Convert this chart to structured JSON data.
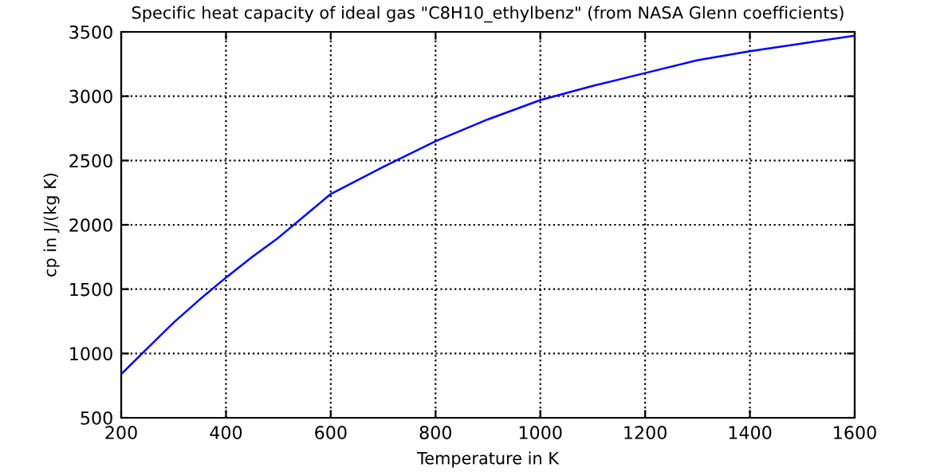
{
  "chart_data": {
    "type": "line",
    "title": "Specific heat capacity of ideal gas \"C8H10_ethylbenz\" (from NASA Glenn coefficients)",
    "xlabel": "Temperature in K",
    "ylabel": "cp in J/(kg K)",
    "x": [
      200,
      250,
      300,
      350,
      400,
      450,
      500,
      550,
      600,
      700,
      800,
      900,
      1000,
      1100,
      1200,
      1300,
      1400,
      1500,
      1600
    ],
    "series": [
      {
        "color": "#0000ff",
        "values": [
          840,
          1040,
          1240,
          1420,
          1590,
          1750,
          1900,
          2070,
          2240,
          2450,
          2650,
          2820,
          2970,
          3080,
          3180,
          3280,
          3350,
          3410,
          3470
        ]
      }
    ],
    "xlim": [
      200,
      1600
    ],
    "ylim": [
      500,
      3500
    ],
    "xticks": [
      200,
      400,
      600,
      800,
      1000,
      1200,
      1400,
      1600
    ],
    "yticks": [
      500,
      1000,
      1500,
      2000,
      2500,
      3000,
      3500
    ],
    "grid": true,
    "line_style": "solid",
    "marker": "none",
    "legend": false
  }
}
